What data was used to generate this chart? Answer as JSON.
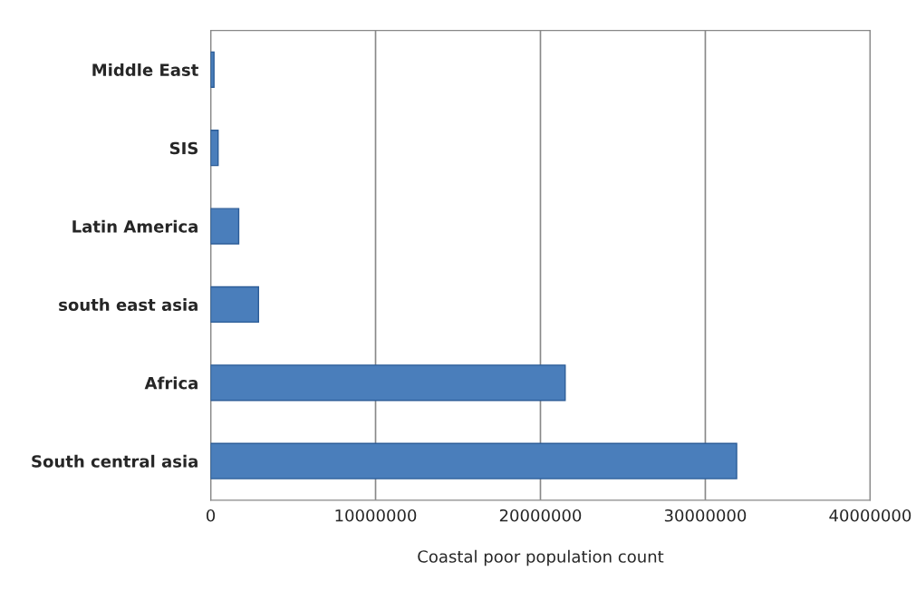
{
  "chart_data": {
    "type": "bar",
    "orientation": "horizontal",
    "xlabel": "Coastal poor population count",
    "categories": [
      "Middle East",
      "SIS",
      "Latin America",
      "south east asia",
      "Africa",
      "South central asia"
    ],
    "values": [
      200000,
      450000,
      1700000,
      2900000,
      21500000,
      31900000
    ],
    "color": "#4a7ebb",
    "xlim": [
      0,
      40000000
    ],
    "xticks": [
      0,
      10000000,
      20000000,
      30000000,
      40000000
    ],
    "grid": "x"
  }
}
